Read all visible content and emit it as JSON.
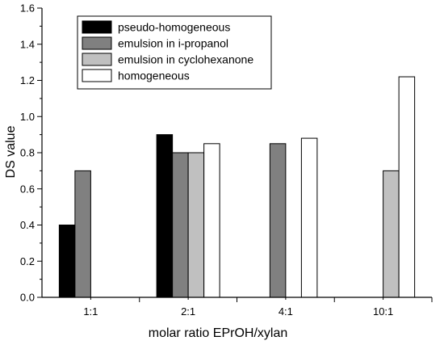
{
  "chart_data": {
    "type": "bar",
    "title": "",
    "xlabel": "molar ratio EPrOH/xylan",
    "ylabel": "DS value",
    "categories": [
      "1:1",
      "2:1",
      "4:1",
      "10:1"
    ],
    "ylim": [
      0.0,
      1.6
    ],
    "yticks": [
      "0.0",
      "0.2",
      "0.4",
      "0.6",
      "0.8",
      "1.0",
      "1.2",
      "1.4",
      "1.6"
    ],
    "grid": false,
    "legend_position": "top-left",
    "series": [
      {
        "name": "pseudo-homogeneous",
        "color": "#000000",
        "values": [
          0.4,
          0.9,
          null,
          null
        ]
      },
      {
        "name": "emulsion in i-propanol",
        "color": "#808080",
        "values": [
          0.7,
          0.8,
          0.85,
          null
        ]
      },
      {
        "name": "emulsion in cyclohexanone",
        "color": "#c0c0c0",
        "values": [
          null,
          0.8,
          null,
          0.7
        ]
      },
      {
        "name": "homogeneous",
        "color": "#ffffff",
        "values": [
          null,
          0.85,
          0.88,
          1.22
        ]
      }
    ]
  }
}
